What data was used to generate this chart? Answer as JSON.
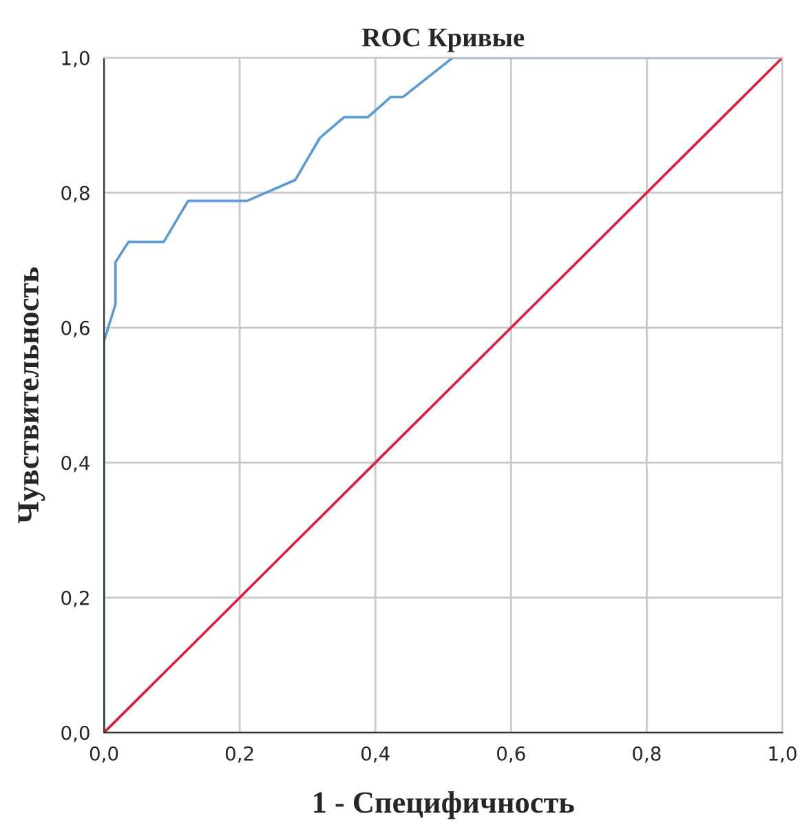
{
  "chart_data": {
    "type": "line",
    "title": "ROC Кривые",
    "xlabel": "1 - Специфичность",
    "ylabel": "Чувствительность",
    "series": [
      {
        "color": "#5b9bd5",
        "x": [
          0,
          0,
          0.017,
          0.017,
          0.036,
          0.088,
          0.124,
          0.211,
          0.282,
          0.318,
          0.354,
          0.389,
          0.423,
          0.441,
          0.514,
          1
        ],
        "values": [
          0,
          0.58,
          0.635,
          0.697,
          0.727,
          0.727,
          0.788,
          0.788,
          0.819,
          0.881,
          0.912,
          0.912,
          0.942,
          0.942,
          1,
          1
        ]
      },
      {
        "color": "#e31a3c",
        "x": [
          0,
          1
        ],
        "values": [
          0,
          1
        ]
      }
    ],
    "xlim": [
      0,
      1
    ],
    "ylim": [
      0,
      1
    ],
    "xticks": [
      {
        "value": 0,
        "label": "0,0"
      },
      {
        "value": 0.2,
        "label": "0,2"
      },
      {
        "value": 0.4,
        "label": "0,4"
      },
      {
        "value": 0.6,
        "label": "0,6"
      },
      {
        "value": 0.8,
        "label": "0,8"
      },
      {
        "value": 1,
        "label": "1,0"
      }
    ],
    "yticks": [
      {
        "value": 0,
        "label": "0,0"
      },
      {
        "value": 0.2,
        "label": "0,2"
      },
      {
        "value": 0.4,
        "label": "0,4"
      },
      {
        "value": 0.6,
        "label": "0,6"
      },
      {
        "value": 0.8,
        "label": "0,8"
      },
      {
        "value": 1,
        "label": "1,0"
      }
    ],
    "grid": true
  }
}
